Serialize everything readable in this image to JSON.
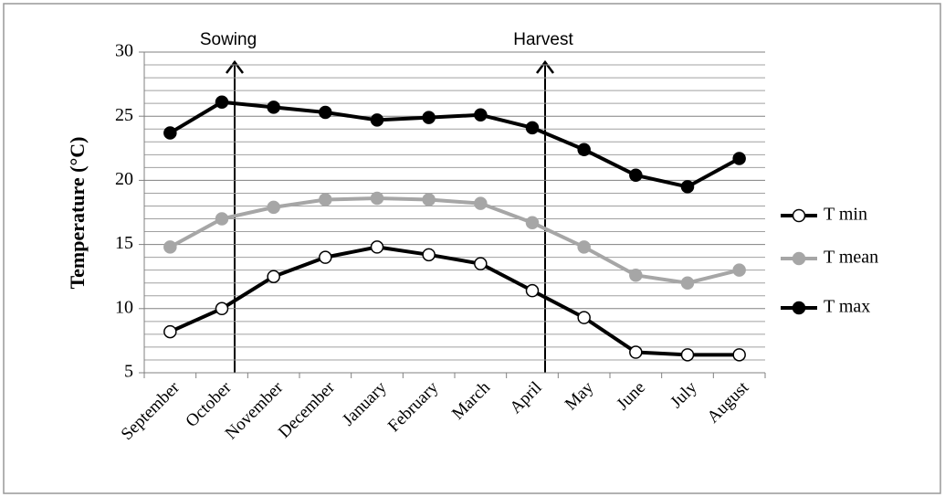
{
  "chart_data": {
    "type": "line",
    "ylabel": "Temperature (°C)",
    "annotations": [
      "Sowing",
      "Harvest"
    ],
    "categories": [
      "September",
      "October",
      "November",
      "December",
      "January",
      "February",
      "March",
      "April",
      "May",
      "June",
      "July",
      "August"
    ],
    "series": [
      {
        "name": "T min",
        "color": "#000000",
        "marker_fill": "#ffffff",
        "values": [
          8.2,
          10.0,
          12.5,
          14.0,
          14.8,
          14.2,
          13.5,
          11.4,
          9.3,
          6.6,
          6.4,
          6.4
        ]
      },
      {
        "name": "T mean",
        "color": "#a6a6a6",
        "marker_fill": "#a6a6a6",
        "values": [
          14.8,
          17.0,
          17.9,
          18.5,
          18.6,
          18.5,
          18.2,
          16.7,
          14.8,
          12.6,
          12.0,
          13.0
        ]
      },
      {
        "name": "T max",
        "color": "#000000",
        "marker_fill": "#000000",
        "values": [
          23.7,
          26.1,
          25.7,
          25.3,
          24.7,
          24.9,
          25.1,
          24.1,
          22.4,
          20.4,
          19.5,
          21.7
        ]
      }
    ],
    "ylim": [
      5,
      30
    ],
    "yticks": [
      5,
      10,
      15,
      20,
      25,
      30
    ],
    "grid": true,
    "legend": "right"
  }
}
